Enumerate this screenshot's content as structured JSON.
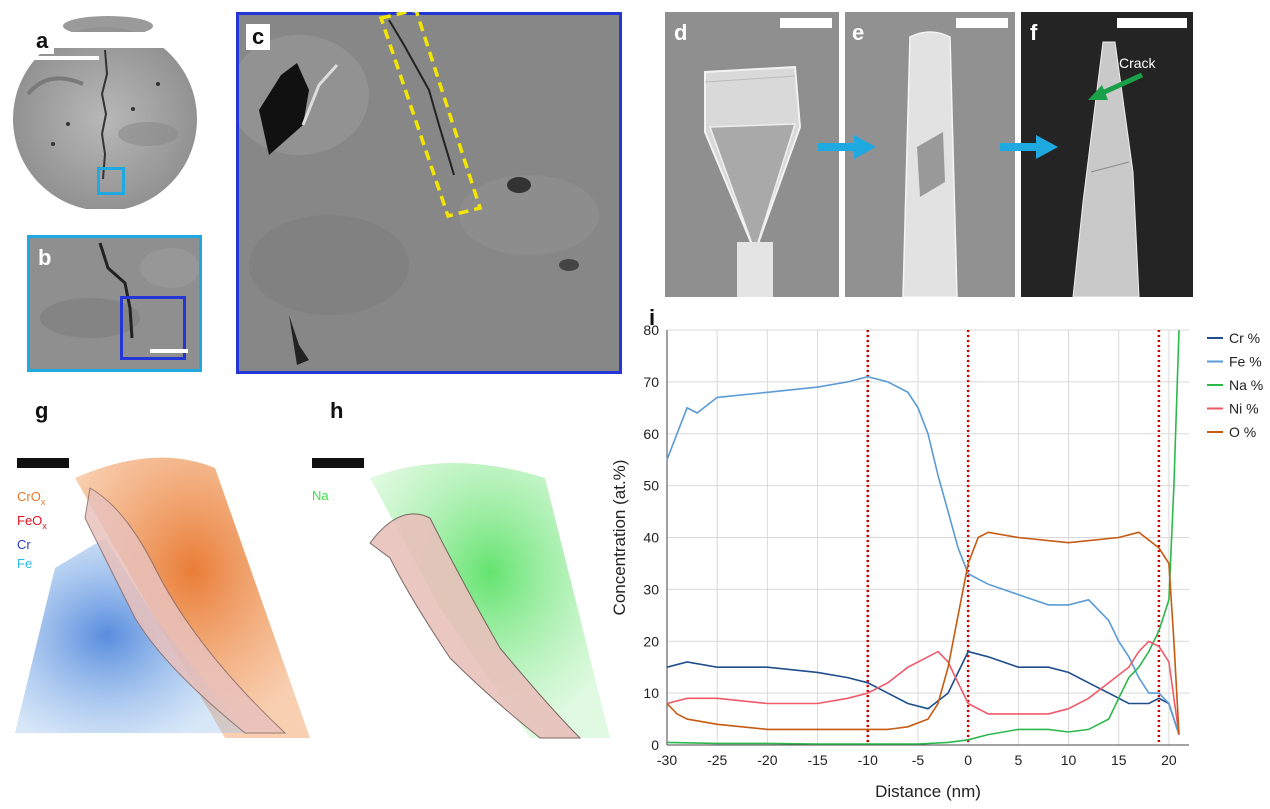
{
  "panels": {
    "a": {
      "label": "a"
    },
    "b": {
      "label": "b"
    },
    "c": {
      "label": "c"
    },
    "d": {
      "label": "d"
    },
    "e": {
      "label": "e"
    },
    "f": {
      "label": "f",
      "annotation": "Crack"
    },
    "g": {
      "label": "g",
      "legend": [
        {
          "text": "CrO",
          "sub": "x",
          "color": "#e8762c"
        },
        {
          "text": "FeO",
          "sub": "x",
          "color": "#e0141e"
        },
        {
          "text": "Cr",
          "sub": "",
          "color": "#2a3cc8"
        },
        {
          "text": "Fe",
          "sub": "",
          "color": "#2fb6ea"
        }
      ]
    },
    "h": {
      "label": "h",
      "legend": [
        {
          "text": "Na",
          "sub": "",
          "color": "#3ddc4a"
        }
      ]
    },
    "i": {
      "label": "i"
    }
  },
  "colors": {
    "cyan_box": "#1fa9e1",
    "blue_box": "#2436d6",
    "yellow_dash": "#f2e600",
    "arrow": "#1fa9e1",
    "crack_arrow": "#1aa049",
    "vline": "#d10000"
  },
  "chart_data": {
    "type": "line",
    "xlabel": "Distance (nm)",
    "ylabel": "Concentration (at.%)",
    "xlim": [
      -30,
      22
    ],
    "ylim": [
      0,
      80
    ],
    "xticks": [
      "-30",
      "-25",
      "-20",
      "-15",
      "-10",
      "-5",
      "0",
      "5",
      "10",
      "15",
      "20"
    ],
    "yticks": [
      "0",
      "10",
      "20",
      "30",
      "40",
      "50",
      "60",
      "70",
      "80"
    ],
    "grid": true,
    "legend_position": "right",
    "vertical_lines": [
      -10,
      0,
      19
    ],
    "series": [
      {
        "name": "Cr %",
        "color": "#1f4e8c",
        "x": [
          -30,
          -28,
          -25,
          -20,
          -15,
          -12,
          -10,
          -8,
          -6,
          -4,
          -2,
          -1,
          0,
          2,
          5,
          8,
          10,
          12,
          14,
          16,
          18,
          19,
          20,
          21
        ],
        "y": [
          15,
          16,
          15,
          15,
          14,
          13,
          12,
          10,
          8,
          7,
          10,
          14,
          18,
          17,
          15,
          15,
          14,
          12,
          10,
          8,
          8,
          9,
          8,
          2
        ]
      },
      {
        "name": "Fe %",
        "color": "#5b9bd5",
        "x": [
          -30,
          -29,
          -28,
          -27,
          -25,
          -20,
          -15,
          -12,
          -10,
          -8,
          -6,
          -5,
          -4,
          -3,
          -2,
          -1,
          0,
          2,
          5,
          8,
          10,
          12,
          14,
          15,
          16,
          17,
          18,
          19,
          20,
          21
        ],
        "y": [
          55,
          60,
          65,
          64,
          67,
          68,
          69,
          70,
          71,
          70,
          68,
          65,
          60,
          52,
          45,
          38,
          33,
          31,
          29,
          27,
          27,
          28,
          24,
          20,
          17,
          13,
          10,
          10,
          8,
          2
        ]
      },
      {
        "name": "Na %",
        "color": "#2db84c",
        "x": [
          -30,
          -25,
          -20,
          -15,
          -10,
          -5,
          -2,
          0,
          2,
          5,
          8,
          10,
          12,
          14,
          15,
          16,
          17,
          18,
          19,
          20,
          20.5,
          21
        ],
        "y": [
          0.5,
          0.3,
          0.3,
          0.2,
          0.2,
          0.2,
          0.5,
          1,
          2,
          3,
          3,
          2.5,
          3,
          5,
          9,
          13,
          15,
          18,
          22,
          28,
          50,
          80
        ]
      },
      {
        "name": "Ni %",
        "color": "#ef5a6a",
        "x": [
          -30,
          -28,
          -25,
          -20,
          -15,
          -12,
          -10,
          -8,
          -6,
          -4,
          -3,
          -2,
          -1,
          0,
          2,
          5,
          8,
          10,
          12,
          14,
          16,
          17,
          18,
          19,
          20,
          21
        ],
        "y": [
          8,
          9,
          9,
          8,
          8,
          9,
          10,
          12,
          15,
          17,
          18,
          16,
          12,
          8,
          6,
          6,
          6,
          7,
          9,
          12,
          15,
          18,
          20,
          19,
          16,
          2
        ]
      },
      {
        "name": "O %",
        "color": "#c65a11",
        "x": [
          -30,
          -29,
          -28,
          -25,
          -20,
          -15,
          -10,
          -8,
          -6,
          -4,
          -3,
          -2,
          -1,
          0,
          1,
          2,
          5,
          10,
          15,
          17,
          19,
          20,
          20.5,
          21
        ],
        "y": [
          8,
          6,
          5,
          4,
          3,
          3,
          3,
          3,
          3.5,
          5,
          8,
          15,
          25,
          35,
          40,
          41,
          40,
          39,
          40,
          41,
          38,
          35,
          20,
          2
        ]
      }
    ]
  }
}
